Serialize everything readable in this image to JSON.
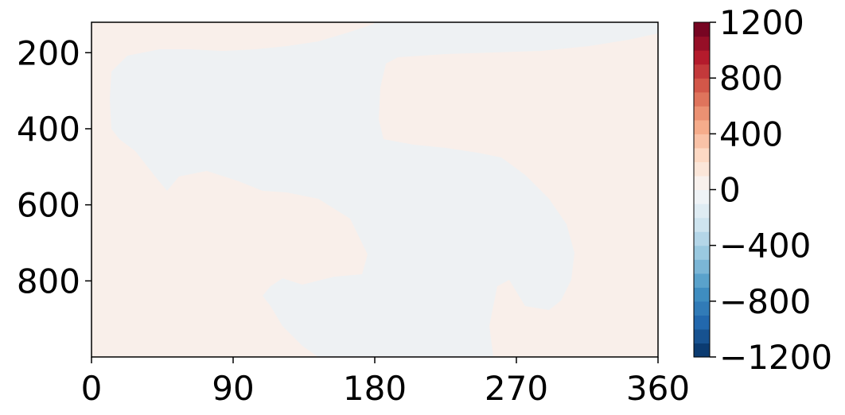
{
  "chart_data": {
    "type": "heatmap",
    "title": "",
    "xlabel": "",
    "ylabel": "",
    "xlim": [
      0,
      360
    ],
    "ylim": [
      1000,
      120
    ],
    "y_inverted": true,
    "x_ticks": [
      "0",
      "90",
      "180",
      "270",
      "360"
    ],
    "x_tick_values": [
      0,
      90,
      180,
      270,
      360
    ],
    "y_ticks": [
      "200",
      "400",
      "600",
      "800"
    ],
    "y_tick_values": [
      200,
      400,
      600,
      800
    ],
    "colorbar": {
      "colormap": "RdBu_r",
      "range": [
        -1200,
        1200
      ],
      "levels": 24,
      "ticks": [
        "1200",
        "800",
        "400",
        "0",
        "−400",
        "−800",
        "−1200"
      ],
      "tick_values": [
        1200,
        800,
        400,
        0,
        -400,
        -800,
        -1200
      ]
    },
    "regions": [
      {
        "sign": "positive",
        "approx_value": 50,
        "color": "#f9efea",
        "desc": "background"
      },
      {
        "sign": "negative",
        "approx_value": -50,
        "color": "#eef1f3"
      }
    ]
  }
}
